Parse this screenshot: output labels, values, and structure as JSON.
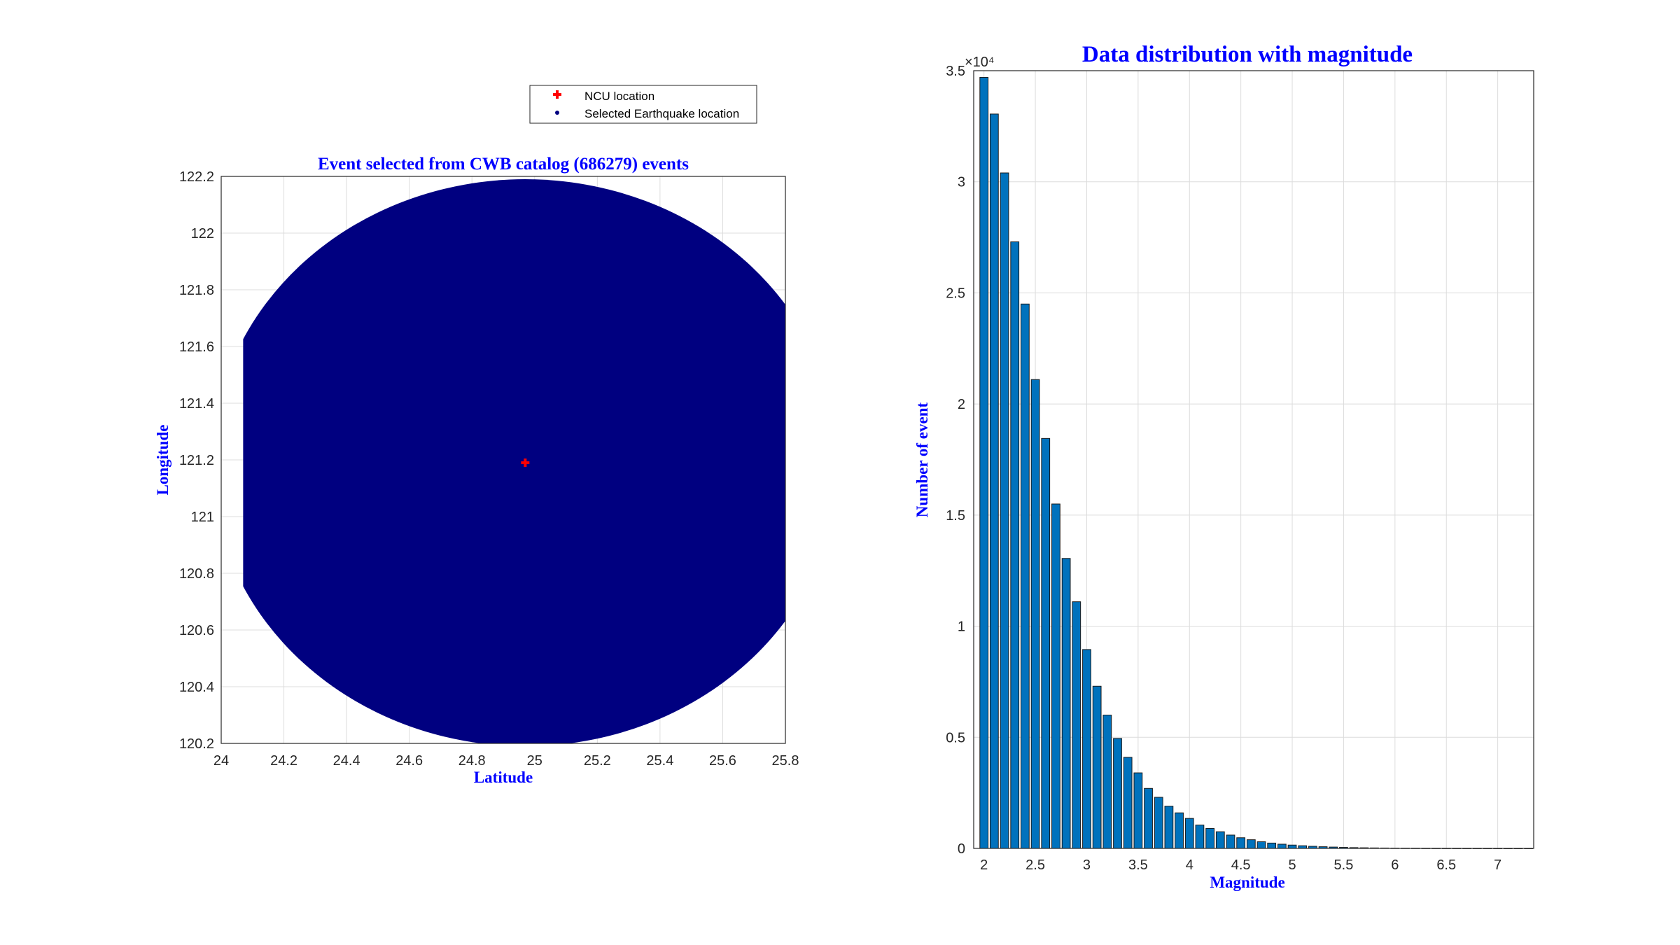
{
  "chart_data": [
    {
      "type": "scatter",
      "title": "Event selected from CWB catalog (686279) events",
      "xlabel": "Latitude",
      "ylabel": "Longitude",
      "xlim": [
        24,
        25.8
      ],
      "ylim": [
        120.2,
        122.2
      ],
      "xticks": [
        "24",
        "24.2",
        "24.4",
        "24.6",
        "24.8",
        "25",
        "25.2",
        "25.4",
        "25.6",
        "25.8"
      ],
      "yticks": [
        "120.2",
        "120.4",
        "120.6",
        "120.8",
        "121",
        "121.2",
        "121.4",
        "121.6",
        "121.8",
        "122",
        "122.2"
      ],
      "grid": true,
      "legend_position": "above plot, right",
      "series": [
        {
          "name": "NCU location",
          "color": "#ff0000",
          "marker": "plus",
          "points": [
            [
              24.97,
              121.19
            ]
          ]
        },
        {
          "name": "Selected Earthquake location",
          "color": "#000080",
          "marker": "dot",
          "dense_region": {
            "description": "dense filled region of events",
            "center": [
              24.97,
              121.19
            ],
            "radius_deg": 1.0,
            "lat_min": 24.07,
            "lon_max": 122.2
          },
          "points": [
            [
              25.05,
              122.15
            ],
            [
              25.12,
              122.12
            ],
            [
              25.2,
              122.05
            ],
            [
              25.3,
              122.1
            ],
            [
              25.35,
              121.98
            ],
            [
              25.45,
              122.02
            ],
            [
              25.55,
              121.95
            ],
            [
              25.65,
              121.88
            ],
            [
              25.57,
              121.82
            ],
            [
              25.4,
              121.75
            ],
            [
              25.25,
              121.7
            ],
            [
              25.15,
              121.65
            ],
            [
              25.3,
              121.62
            ],
            [
              25.5,
              121.6
            ],
            [
              25.65,
              121.55
            ],
            [
              25.7,
              121.6
            ],
            [
              25.75,
              121.45
            ],
            [
              25.62,
              121.24
            ],
            [
              25.66,
              121.24
            ],
            [
              25.5,
              121.28
            ],
            [
              25.45,
              121.3
            ],
            [
              25.35,
              121.32
            ],
            [
              25.22,
              121.36
            ],
            [
              25.1,
              121.4
            ],
            [
              25.05,
              121.25
            ],
            [
              25.08,
              121.18
            ],
            [
              25.0,
              121.15
            ],
            [
              25.25,
              121.0
            ],
            [
              25.22,
              121.0
            ],
            [
              25.35,
              120.93
            ],
            [
              25.28,
              120.8
            ],
            [
              25.2,
              120.82
            ],
            [
              25.17,
              120.82
            ],
            [
              25.28,
              120.62
            ],
            [
              25.05,
              120.55
            ],
            [
              25.1,
              120.52
            ],
            [
              24.97,
              120.56
            ],
            [
              24.95,
              120.6
            ],
            [
              25.07,
              120.3
            ],
            [
              24.95,
              120.27
            ],
            [
              24.75,
              120.35
            ],
            [
              24.68,
              120.38
            ],
            [
              24.63,
              120.32
            ],
            [
              24.58,
              120.3
            ],
            [
              24.6,
              120.45
            ],
            [
              24.5,
              120.4
            ],
            [
              24.43,
              120.45
            ],
            [
              24.38,
              120.65
            ],
            [
              24.35,
              120.68
            ],
            [
              24.72,
              120.62
            ],
            [
              24.8,
              120.8
            ],
            [
              24.9,
              120.65
            ],
            [
              24.85,
              120.7
            ],
            [
              24.75,
              120.55
            ],
            [
              24.98,
              121.05
            ],
            [
              24.85,
              120.95
            ],
            [
              25.15,
              121.3
            ],
            [
              25.1,
              121.5
            ]
          ]
        }
      ]
    },
    {
      "type": "bar",
      "title": "Data distribution with magnitude",
      "xlabel": "Magnitude",
      "ylabel": "Number of event",
      "xlim": [
        1.9,
        7.35
      ],
      "ylim": [
        0,
        35000
      ],
      "y_exponent": "×10⁴",
      "xticks": [
        "2",
        "2.5",
        "3",
        "3.5",
        "4",
        "4.5",
        "5",
        "5.5",
        "6",
        "6.5",
        "7"
      ],
      "yticks": [
        "0",
        "0.5",
        "1",
        "1.5",
        "2",
        "2.5",
        "3",
        "3.5"
      ],
      "grid": true,
      "bar_color": "#0072bd",
      "categories": [
        2.0,
        2.1,
        2.2,
        2.3,
        2.4,
        2.5,
        2.6,
        2.7,
        2.8,
        2.9,
        3.0,
        3.1,
        3.2,
        3.3,
        3.4,
        3.5,
        3.6,
        3.7,
        3.8,
        3.9,
        4.0,
        4.1,
        4.2,
        4.3,
        4.4,
        4.5,
        4.6,
        4.7,
        4.8,
        4.9,
        5.0,
        5.1,
        5.2,
        5.3,
        5.4,
        5.5,
        5.6,
        5.7,
        5.8,
        5.9,
        6.0,
        6.1,
        6.2,
        6.3,
        6.4,
        6.5,
        6.6,
        6.7,
        6.8,
        6.9,
        7.0,
        7.1,
        7.2,
        7.3
      ],
      "values": [
        34700,
        33050,
        30400,
        27300,
        24500,
        21100,
        18450,
        15500,
        13050,
        11100,
        8950,
        7300,
        6000,
        4950,
        4100,
        3400,
        2700,
        2300,
        1900,
        1600,
        1350,
        1050,
        900,
        750,
        600,
        480,
        390,
        300,
        240,
        190,
        150,
        120,
        95,
        75,
        60,
        45,
        35,
        28,
        22,
        18,
        14,
        11,
        9,
        7,
        6,
        5,
        4,
        3,
        3,
        2,
        2,
        1,
        1,
        1
      ]
    }
  ]
}
